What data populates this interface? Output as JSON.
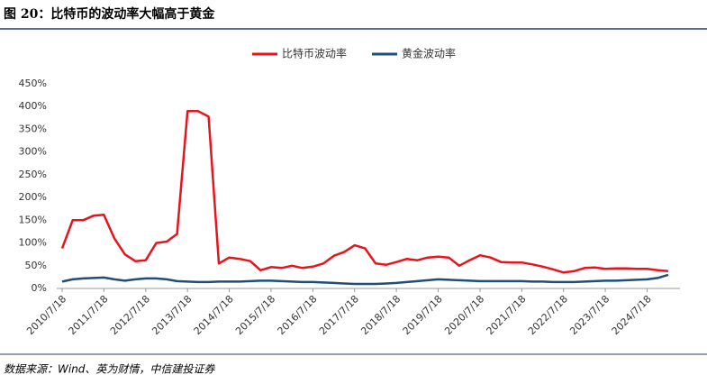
{
  "chart_data": {
    "type": "line",
    "title": "图 20：比特币的波动率大幅高于黄金",
    "source": "数据来源：Wind、英为财情，中信建投证券",
    "x": [
      "2010/7/18",
      "2010/10/18",
      "2011/1/18",
      "2011/4/18",
      "2011/7/18",
      "2011/10/18",
      "2012/1/18",
      "2012/4/18",
      "2012/7/18",
      "2012/10/18",
      "2013/1/18",
      "2013/4/18",
      "2013/7/18",
      "2013/10/18",
      "2014/1/18",
      "2014/4/18",
      "2014/7/18",
      "2014/10/18",
      "2015/1/18",
      "2015/4/18",
      "2015/7/18",
      "2015/10/18",
      "2016/1/18",
      "2016/4/18",
      "2016/7/18",
      "2016/10/18",
      "2017/1/18",
      "2017/4/18",
      "2017/7/18",
      "2017/10/18",
      "2018/1/18",
      "2018/4/18",
      "2018/7/18",
      "2018/10/18",
      "2019/1/18",
      "2019/4/18",
      "2019/7/18",
      "2019/10/18",
      "2020/1/18",
      "2020/4/18",
      "2020/7/18",
      "2020/10/18",
      "2021/1/18",
      "2021/4/18",
      "2021/7/18",
      "2021/10/18",
      "2022/1/18",
      "2022/4/18",
      "2022/7/18",
      "2022/10/18",
      "2023/1/18",
      "2023/4/18",
      "2023/7/18",
      "2023/10/18",
      "2024/1/18",
      "2024/4/18",
      "2024/7/18",
      "2024/10/18",
      "2025/1/18"
    ],
    "series": [
      {
        "name": "比特币波动率",
        "color": "#e8141c",
        "values": [
          88,
          150,
          150,
          160,
          162,
          110,
          75,
          60,
          62,
          100,
          103,
          120,
          390,
          390,
          378,
          55,
          68,
          65,
          60,
          40,
          47,
          45,
          50,
          45,
          48,
          55,
          72,
          80,
          95,
          88,
          55,
          52,
          58,
          65,
          62,
          68,
          70,
          68,
          50,
          62,
          73,
          68,
          58,
          57,
          57,
          53,
          48,
          42,
          35,
          38,
          45,
          46,
          43,
          44,
          44,
          43,
          43,
          40,
          38
        ]
      },
      {
        "name": "黄金波动率",
        "color": "#1f4e79",
        "values": [
          15,
          20,
          22,
          23,
          24,
          20,
          17,
          20,
          22,
          22,
          20,
          16,
          15,
          14,
          14,
          15,
          15,
          15,
          16,
          17,
          17,
          16,
          15,
          14,
          14,
          13,
          12,
          11,
          10,
          10,
          10,
          11,
          12,
          14,
          16,
          18,
          20,
          19,
          18,
          17,
          16,
          16,
          16,
          16,
          16,
          15,
          15,
          14,
          14,
          14,
          15,
          16,
          17,
          17,
          18,
          19,
          20,
          23,
          30
        ]
      }
    ],
    "xlim": [
      "2010/6/1",
      "2025/5/1"
    ],
    "xticks": [
      "2010/7/18",
      "2011/7/18",
      "2012/7/18",
      "2013/7/18",
      "2014/7/18",
      "2015/7/18",
      "2016/7/18",
      "2017/7/18",
      "2018/7/18",
      "2019/7/18",
      "2020/7/18",
      "2021/7/18",
      "2022/7/18",
      "2023/7/18",
      "2024/7/18"
    ],
    "ylim": [
      0,
      450
    ],
    "yticks": [
      {
        "value": 0,
        "label": "0%"
      },
      {
        "value": 50,
        "label": "50%"
      },
      {
        "value": 100,
        "label": "100%"
      },
      {
        "value": 150,
        "label": "150%"
      },
      {
        "value": 200,
        "label": "200%"
      },
      {
        "value": 250,
        "label": "250%"
      },
      {
        "value": 300,
        "label": "300%"
      },
      {
        "value": 350,
        "label": "350%"
      },
      {
        "value": 400,
        "label": "400%"
      },
      {
        "value": 450,
        "label": "450%"
      }
    ]
  }
}
